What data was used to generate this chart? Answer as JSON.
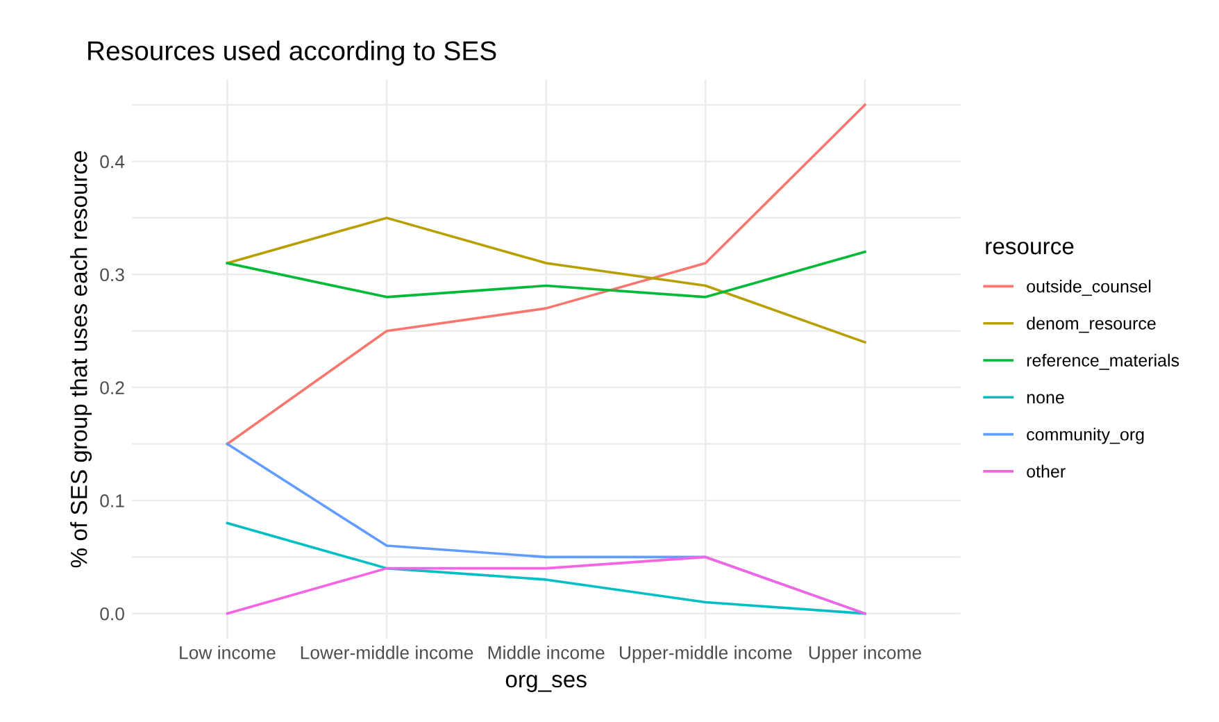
{
  "chart_data": {
    "type": "line",
    "title": "Resources used according to SES",
    "xlabel": "org_ses",
    "ylabel": "% of SES group that uses each resource",
    "legend_title": "resource",
    "legend": "right",
    "grid": true,
    "categories": [
      "Low income",
      "Lower-middle income",
      "Middle income",
      "Upper-middle income",
      "Upper income"
    ],
    "ylim": [
      -0.0225,
      0.4725
    ],
    "yticks": [
      {
        "value": 0,
        "label": "0.0"
      },
      {
        "value": 0.05,
        "label": null
      },
      0.1,
      {
        "value": 0.15,
        "label": null
      },
      0.2,
      {
        "value": 0.25,
        "label": null
      },
      0.3,
      {
        "value": 0.35,
        "label": null
      },
      0.4,
      {
        "value": 0.45,
        "label": null
      }
    ],
    "series": [
      {
        "name": "outside_counsel",
        "color": "#f8766d",
        "values": [
          0.15,
          0.25,
          0.27,
          0.31,
          0.45
        ]
      },
      {
        "name": "denom_resource",
        "color": "#b79f00",
        "values": [
          0.31,
          0.35,
          0.31,
          0.29,
          0.24
        ]
      },
      {
        "name": "reference_materials",
        "color": "#00ba38",
        "values": [
          0.31,
          0.28,
          0.29,
          0.28,
          0.32
        ]
      },
      {
        "name": "none",
        "color": "#00bfc4",
        "values": [
          0.08,
          0.04,
          0.03,
          0.01,
          0.0
        ]
      },
      {
        "name": "community_org",
        "color": "#619cff",
        "values": [
          0.15,
          0.06,
          0.05,
          0.05,
          0.0
        ]
      },
      {
        "name": "other",
        "color": "#f564e3",
        "values": [
          0.0,
          0.04,
          0.04,
          0.05,
          0.0
        ]
      }
    ]
  }
}
